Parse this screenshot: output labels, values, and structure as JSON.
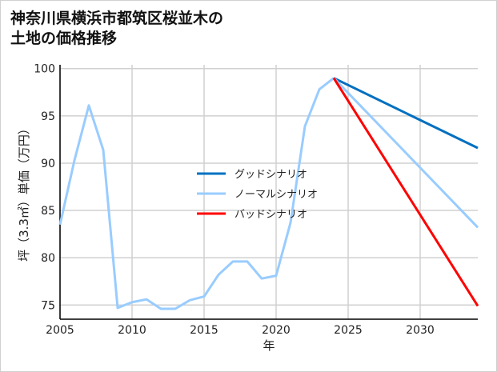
{
  "chart_data": {
    "type": "line",
    "title": [
      "神奈川県横浜市都筑区桜並木の",
      "土地の価格推移"
    ],
    "xlabel": "年",
    "ylabel": "坪（3.3㎡）単価（万円）",
    "xlim": [
      2005,
      2034
    ],
    "ylim": [
      73.5,
      100.4
    ],
    "xticks": [
      2005,
      2010,
      2015,
      2020,
      2025,
      2030
    ],
    "yticks": [
      75,
      80,
      85,
      90,
      95,
      100
    ],
    "grid": true,
    "legend_position": "center",
    "series": [
      {
        "name": "ノーマルシナリオ(history)",
        "legend": false,
        "color": "#99ccff",
        "x": [
          2005,
          2006,
          2007,
          2008,
          2009,
          2010,
          2011,
          2012,
          2013,
          2014,
          2015,
          2016,
          2017,
          2018,
          2019,
          2020,
          2021,
          2022,
          2023,
          2024
        ],
        "y": [
          83.5,
          90.3,
          96.1,
          91.4,
          74.7,
          75.3,
          75.6,
          74.6,
          74.6,
          75.5,
          75.9,
          78.2,
          79.6,
          79.6,
          77.8,
          78.1,
          83.7,
          93.9,
          97.8,
          99.0
        ]
      },
      {
        "name": "グッドシナリオ",
        "legend": true,
        "color": "#0070c0",
        "x": [
          2024,
          2034
        ],
        "y": [
          99.0,
          91.6
        ]
      },
      {
        "name": "ノーマルシナリオ",
        "legend": true,
        "color": "#99ccff",
        "x": [
          2024,
          2034
        ],
        "y": [
          99.0,
          83.2
        ]
      },
      {
        "name": "バッドシナリオ",
        "legend": true,
        "color": "#ff0000",
        "x": [
          2024,
          2034
        ],
        "y": [
          99.0,
          74.9
        ]
      }
    ]
  }
}
